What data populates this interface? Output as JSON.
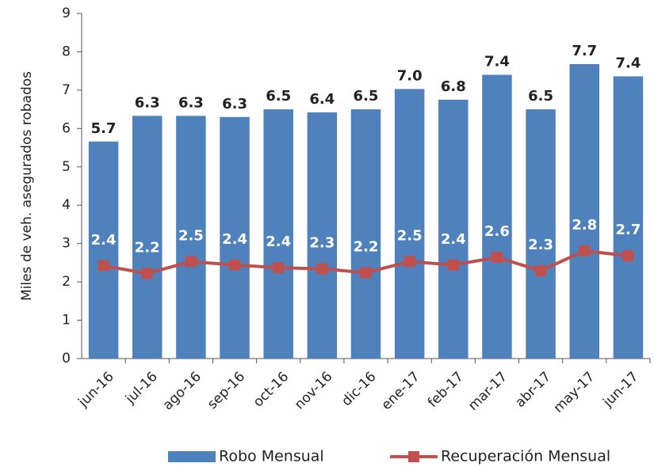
{
  "chart_data": {
    "type": "bar",
    "y_label": "Miles de veh. asegurados robados",
    "categories": [
      "jun-16",
      "jul-16",
      "ago-16",
      "sep-16",
      "oct-16",
      "nov-16",
      "dic-16",
      "ene-17",
      "feb-17",
      "mar-17",
      "abr-17",
      "may-17",
      "jun-17"
    ],
    "series": [
      {
        "name": "Robo Mensual",
        "color": "#4f81bd",
        "type": "bar",
        "values": [
          5.66,
          6.33,
          6.33,
          6.3,
          6.5,
          6.42,
          6.5,
          7.03,
          6.75,
          7.4,
          6.5,
          7.68,
          7.36
        ],
        "value_labels": [
          "5.7",
          "6.3",
          "6.3",
          "6.3",
          "6.5",
          "6.4",
          "6.5",
          "7.0",
          "6.8",
          "7.4",
          "6.5",
          "7.7",
          "7.4"
        ]
      },
      {
        "name": "Recuperación Mensual",
        "color": "#c0504d",
        "type": "line",
        "values": [
          2.42,
          2.22,
          2.53,
          2.44,
          2.37,
          2.34,
          2.24,
          2.53,
          2.44,
          2.64,
          2.29,
          2.81,
          2.68
        ],
        "value_labels": [
          "2.4",
          "2.2",
          "2.5",
          "2.4",
          "2.4",
          "2.3",
          "2.2",
          "2.5",
          "2.4",
          "2.6",
          "2.3",
          "2.8",
          "2.7"
        ]
      }
    ],
    "ylim": [
      0,
      9
    ],
    "yticks": [
      0,
      1,
      2,
      3,
      4,
      5,
      6,
      7,
      8,
      9
    ],
    "grid": false,
    "legend": "bottom-right"
  }
}
